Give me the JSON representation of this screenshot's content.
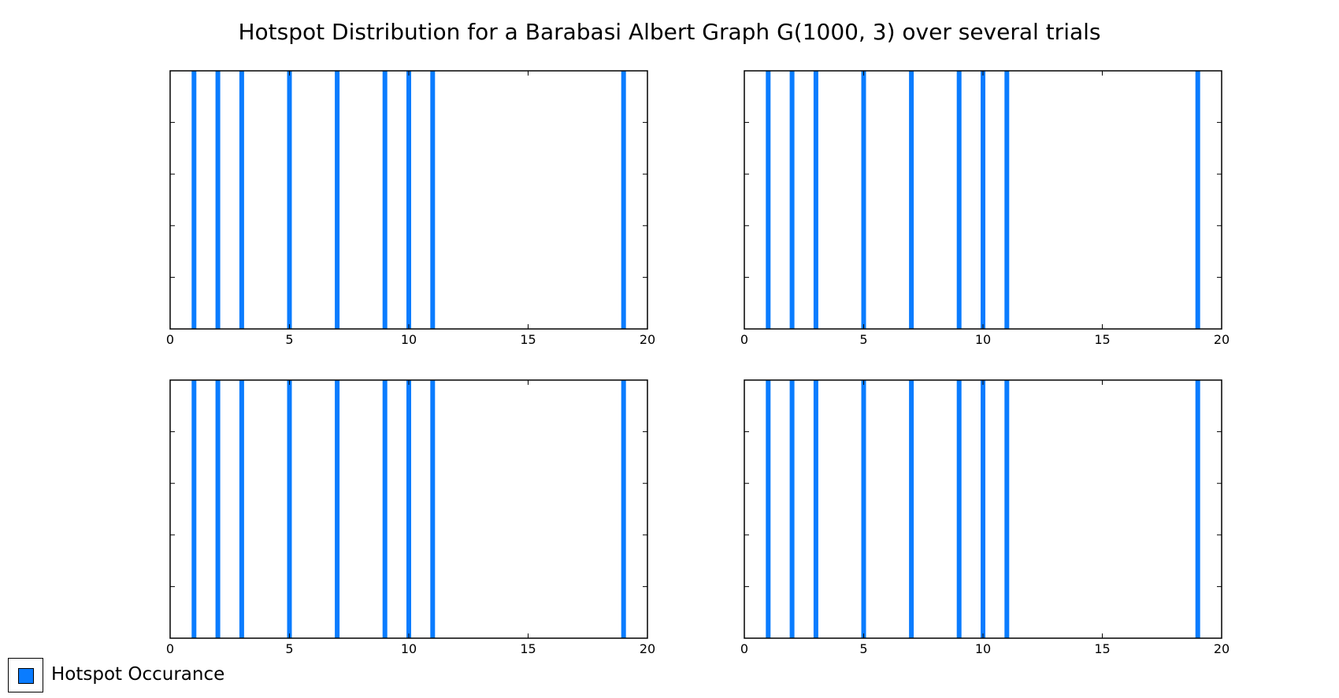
{
  "title": "Hotspot Distribution for a Barabasi Albert Graph G(1000, 3) over several trials",
  "colors": {
    "bar": "#0a7cff",
    "axis": "#000000"
  },
  "legend": {
    "label": "Hotspot Occurance",
    "placement": "bottom-left"
  },
  "chart_data": [
    {
      "type": "bar",
      "title": "",
      "xlabel": "",
      "ylabel": "",
      "xlim": [
        0,
        20
      ],
      "xticks": [
        0,
        5,
        10,
        15,
        20
      ],
      "grid": false,
      "series": [
        {
          "name": "Hotspot Occurance",
          "x": [
            1,
            2,
            3,
            5,
            7,
            9,
            10,
            11,
            19
          ],
          "values": [
            1,
            1,
            1,
            1,
            1,
            1,
            1,
            1,
            1
          ]
        }
      ]
    },
    {
      "type": "bar",
      "title": "",
      "xlabel": "",
      "ylabel": "",
      "xlim": [
        0,
        20
      ],
      "xticks": [
        0,
        5,
        10,
        15,
        20
      ],
      "grid": false,
      "series": [
        {
          "name": "Hotspot Occurance",
          "x": [
            1,
            2,
            3,
            5,
            7,
            9,
            10,
            11,
            19
          ],
          "values": [
            1,
            1,
            1,
            1,
            1,
            1,
            1,
            1,
            1
          ]
        }
      ]
    },
    {
      "type": "bar",
      "title": "",
      "xlabel": "",
      "ylabel": "",
      "xlim": [
        0,
        20
      ],
      "xticks": [
        0,
        5,
        10,
        15,
        20
      ],
      "grid": false,
      "series": [
        {
          "name": "Hotspot Occurance",
          "x": [
            1,
            2,
            3,
            5,
            7,
            9,
            10,
            11,
            19
          ],
          "values": [
            1,
            1,
            1,
            1,
            1,
            1,
            1,
            1,
            1
          ]
        }
      ]
    },
    {
      "type": "bar",
      "title": "",
      "xlabel": "",
      "ylabel": "",
      "xlim": [
        0,
        20
      ],
      "xticks": [
        0,
        5,
        10,
        15,
        20
      ],
      "grid": false,
      "series": [
        {
          "name": "Hotspot Occurance",
          "x": [
            1,
            2,
            3,
            5,
            7,
            9,
            10,
            11,
            19
          ],
          "values": [
            1,
            1,
            1,
            1,
            1,
            1,
            1,
            1,
            1
          ]
        }
      ]
    }
  ]
}
